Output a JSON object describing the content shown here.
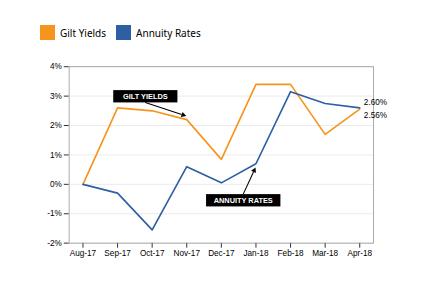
{
  "chart_data": {
    "type": "line",
    "categories": [
      "Aug-17",
      "Sep-17",
      "Oct-17",
      "Nov-17",
      "Dec-17",
      "Jan-18",
      "Feb-18",
      "Mar-18",
      "Apr-18"
    ],
    "series": [
      {
        "name": "Gilt Yields",
        "color": "#F7941D",
        "values": [
          0.0,
          2.6,
          2.5,
          2.2,
          0.85,
          3.4,
          3.4,
          1.7,
          2.56
        ],
        "value_labels": [
          null,
          null,
          null,
          null,
          null,
          null,
          null,
          null,
          "2.56%"
        ]
      },
      {
        "name": "Annuity Rates",
        "color": "#2E5FA3",
        "values": [
          0.0,
          -0.3,
          -1.55,
          0.6,
          0.05,
          0.7,
          3.15,
          2.75,
          2.6
        ],
        "value_labels": [
          null,
          null,
          null,
          null,
          null,
          null,
          null,
          null,
          "2.60%"
        ]
      }
    ],
    "ylim": [
      -2.0,
      4.0
    ],
    "yticks": [
      {
        "value": -2.0,
        "label": "-2%"
      },
      {
        "value": -1.0,
        "label": "-1%"
      },
      {
        "value": 0.0,
        "label": "0%"
      },
      {
        "value": 1.0,
        "label": "1%"
      },
      {
        "value": 2.0,
        "label": "2%"
      },
      {
        "value": 3.0,
        "label": "3%"
      },
      {
        "value": 4.0,
        "label": "4%"
      }
    ],
    "grid": true,
    "legend": "top",
    "annotations": [
      {
        "text": "GILT YIELDS",
        "series": "Gilt Yields",
        "x": "Nov-17"
      },
      {
        "text": "ANNUITY RATES",
        "series": "Annuity Rates",
        "x": "Jan-18"
      }
    ]
  }
}
